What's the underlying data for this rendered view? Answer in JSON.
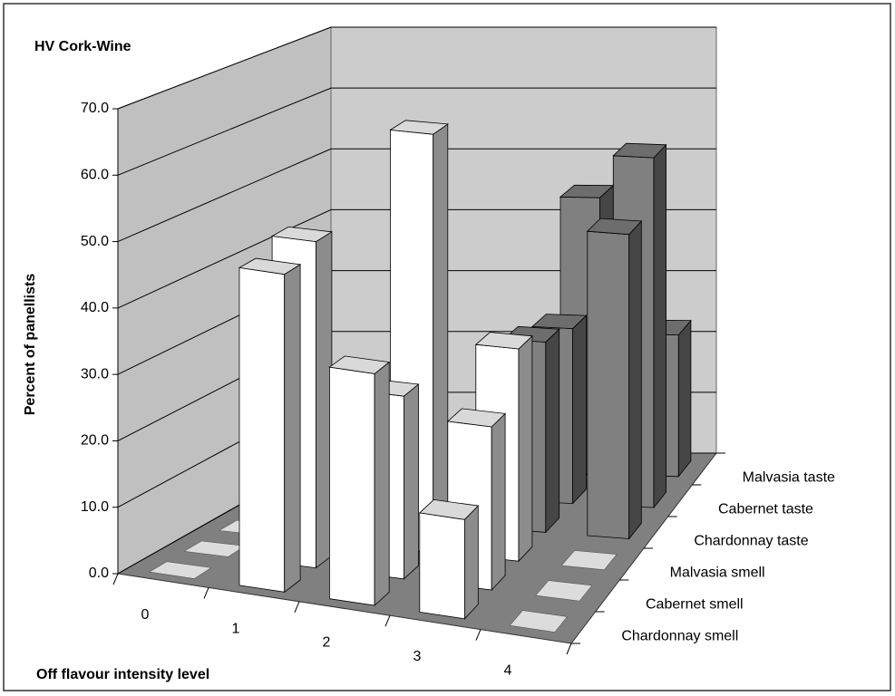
{
  "chart_data": {
    "type": "bar3d",
    "title": "HV Cork-Wine",
    "x_label": "Off flavour intensity level",
    "y_label": "Percent of panellists",
    "categories": [
      "0",
      "1",
      "2",
      "3",
      "4"
    ],
    "series": [
      {
        "name": "Chardonnay smell",
        "color": "#ffffff",
        "values": [
          0,
          48,
          35,
          15,
          0
        ]
      },
      {
        "name": "Cabernet smell",
        "color": "#ffffff",
        "values": [
          0,
          50,
          28,
          25,
          0
        ]
      },
      {
        "name": "Malvasia smell",
        "color": "#ffffff",
        "values": [
          0,
          0,
          65,
          33,
          0
        ]
      },
      {
        "name": "Chardonnay taste",
        "color": "#808080",
        "values": [
          0,
          0,
          5,
          30,
          48
        ]
      },
      {
        "name": "Cabernet taste",
        "color": "#808080",
        "values": [
          0,
          0,
          10,
          28,
          56
        ]
      },
      {
        "name": "Malvasia taste",
        "color": "#808080",
        "values": [
          0,
          0,
          15,
          45,
          23
        ]
      }
    ],
    "ylim": [
      0,
      70
    ],
    "yticks": [
      {
        "value": 0,
        "label": "0.0"
      },
      {
        "value": 10,
        "label": "10.0"
      },
      {
        "value": 20,
        "label": "20.0"
      },
      {
        "value": 30,
        "label": "30.0"
      },
      {
        "value": 40,
        "label": "40.0"
      },
      {
        "value": 50,
        "label": "50.0"
      },
      {
        "value": 60,
        "label": "60.0"
      },
      {
        "value": 70,
        "label": "70.0"
      }
    ],
    "grid": true
  }
}
